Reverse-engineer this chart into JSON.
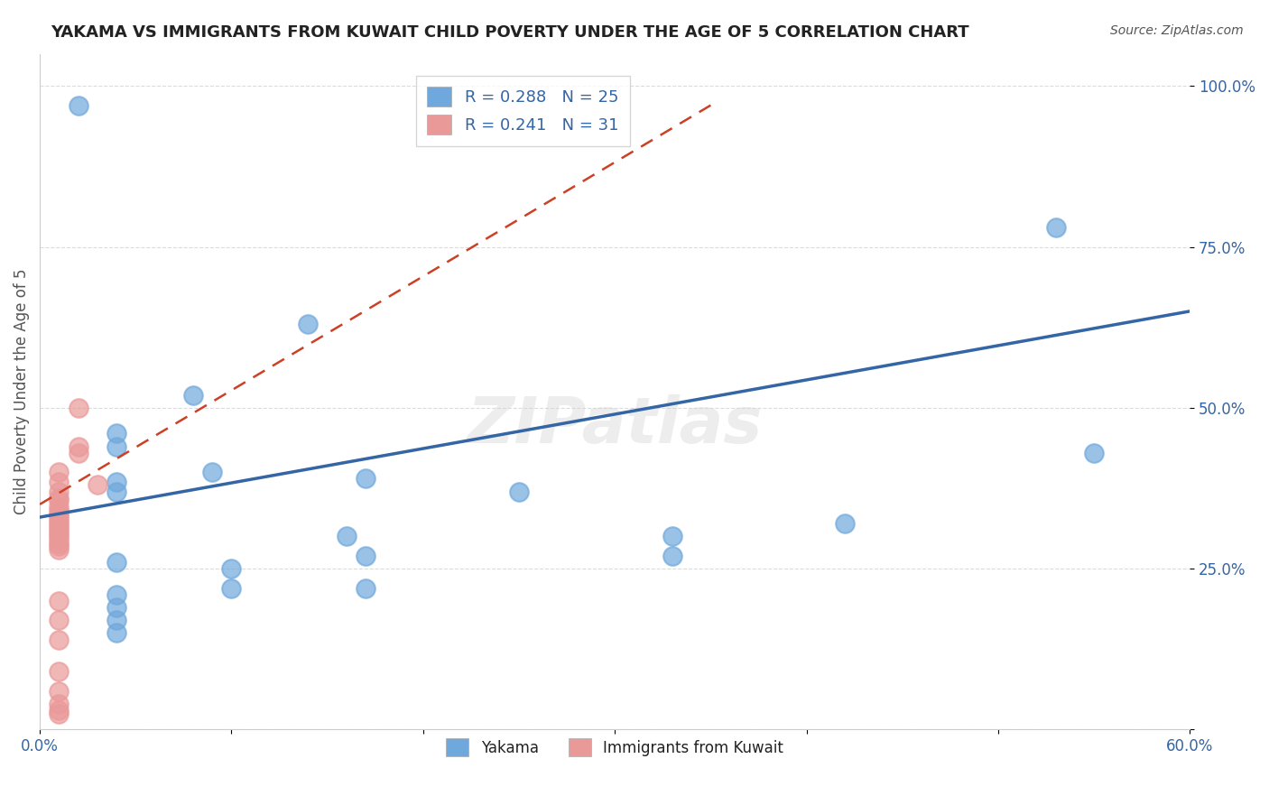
{
  "title": "YAKAMA VS IMMIGRANTS FROM KUWAIT CHILD POVERTY UNDER THE AGE OF 5 CORRELATION CHART",
  "source": "Source: ZipAtlas.com",
  "ylabel": "Child Poverty Under the Age of 5",
  "xlim": [
    0.0,
    0.6
  ],
  "ylim": [
    0.0,
    1.05
  ],
  "xticks": [
    0.0,
    0.1,
    0.2,
    0.3,
    0.4,
    0.5,
    0.6
  ],
  "xticklabels": [
    "0.0%",
    "",
    "",
    "",
    "",
    "",
    "60.0%"
  ],
  "ytick_positions": [
    0.0,
    0.25,
    0.5,
    0.75,
    1.0
  ],
  "yticklabels": [
    "",
    "25.0%",
    "50.0%",
    "75.0%",
    "100.0%"
  ],
  "watermark": "ZIPatlas",
  "blue_color": "#6fa8dc",
  "pink_color": "#ea9999",
  "line_blue": "#3465a4",
  "line_pink": "#cc4125",
  "yakama_points": [
    [
      0.02,
      0.97
    ],
    [
      0.14,
      0.63
    ],
    [
      0.08,
      0.52
    ],
    [
      0.04,
      0.46
    ],
    [
      0.04,
      0.44
    ],
    [
      0.09,
      0.4
    ],
    [
      0.17,
      0.39
    ],
    [
      0.04,
      0.385
    ],
    [
      0.04,
      0.37
    ],
    [
      0.25,
      0.37
    ],
    [
      0.16,
      0.3
    ],
    [
      0.33,
      0.3
    ],
    [
      0.17,
      0.27
    ],
    [
      0.33,
      0.27
    ],
    [
      0.04,
      0.26
    ],
    [
      0.1,
      0.25
    ],
    [
      0.1,
      0.22
    ],
    [
      0.17,
      0.22
    ],
    [
      0.04,
      0.21
    ],
    [
      0.04,
      0.19
    ],
    [
      0.04,
      0.17
    ],
    [
      0.04,
      0.15
    ],
    [
      0.53,
      0.78
    ],
    [
      0.55,
      0.43
    ],
    [
      0.42,
      0.32
    ]
  ],
  "kuwait_points": [
    [
      0.01,
      0.4
    ],
    [
      0.01,
      0.385
    ],
    [
      0.01,
      0.37
    ],
    [
      0.01,
      0.36
    ],
    [
      0.01,
      0.355
    ],
    [
      0.01,
      0.345
    ],
    [
      0.01,
      0.34
    ],
    [
      0.01,
      0.335
    ],
    [
      0.01,
      0.33
    ],
    [
      0.01,
      0.325
    ],
    [
      0.01,
      0.32
    ],
    [
      0.01,
      0.315
    ],
    [
      0.01,
      0.31
    ],
    [
      0.01,
      0.305
    ],
    [
      0.01,
      0.3
    ],
    [
      0.01,
      0.295
    ],
    [
      0.01,
      0.29
    ],
    [
      0.01,
      0.285
    ],
    [
      0.01,
      0.28
    ],
    [
      0.02,
      0.44
    ],
    [
      0.02,
      0.43
    ],
    [
      0.02,
      0.5
    ],
    [
      0.01,
      0.2
    ],
    [
      0.01,
      0.17
    ],
    [
      0.01,
      0.14
    ],
    [
      0.01,
      0.09
    ],
    [
      0.01,
      0.06
    ],
    [
      0.01,
      0.04
    ],
    [
      0.01,
      0.03
    ],
    [
      0.01,
      0.025
    ],
    [
      0.03,
      0.38
    ]
  ],
  "blue_line_x": [
    0.0,
    0.6
  ],
  "blue_line_y": [
    0.33,
    0.65
  ],
  "pink_line_x": [
    0.0,
    0.35
  ],
  "pink_line_y": [
    0.35,
    0.97
  ],
  "legend1_r": "R = 0.288",
  "legend1_n": "N = 25",
  "legend2_r": "R = 0.241",
  "legend2_n": "N = 31",
  "legend_bottom_labels": [
    "Yakama",
    "Immigrants from Kuwait"
  ]
}
